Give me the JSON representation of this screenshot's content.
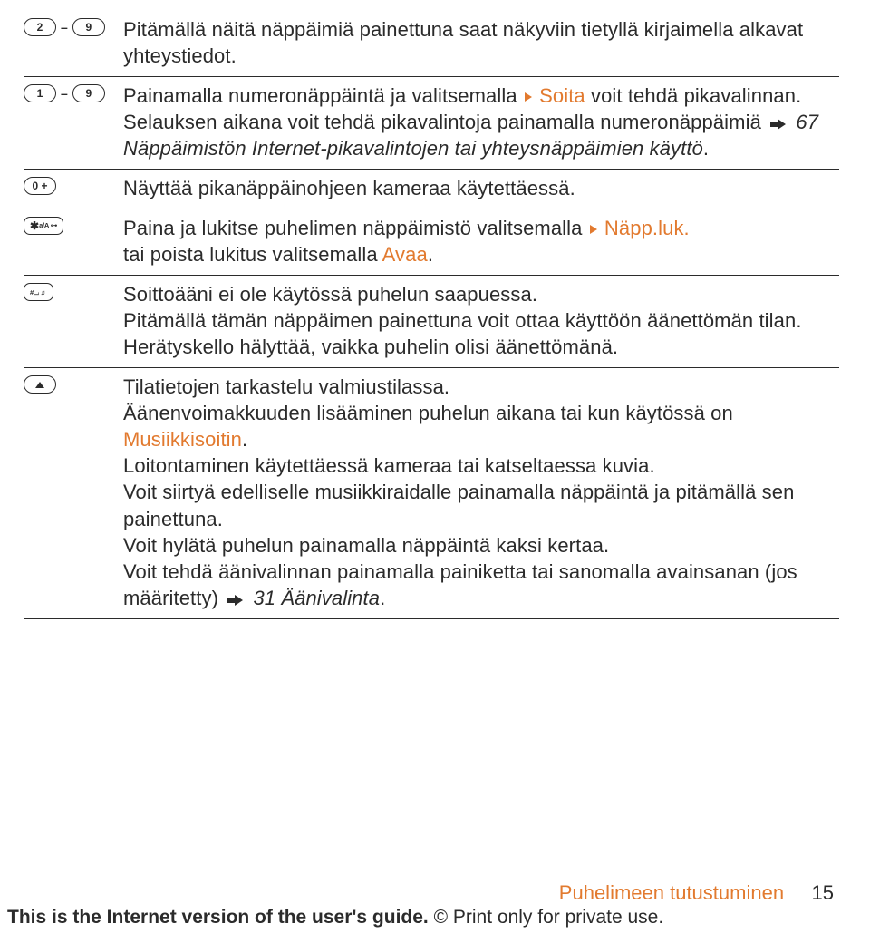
{
  "rows": [
    {
      "keys": [
        "2",
        "dash",
        "9"
      ],
      "parts": [
        {
          "text": "Pitämällä näitä näppäimiä painettuna saat näkyviin tietyllä kirjaimella alkavat yhteystiedot."
        }
      ]
    },
    {
      "keys": [
        "1",
        "dash",
        "9"
      ],
      "parts": [
        {
          "text": "Painamalla numeronäppäintä ja valitsemalla "
        },
        {
          "tri": true
        },
        {
          "text": " "
        },
        {
          "text": "Soita",
          "cls": "orange"
        },
        {
          "text": " voit tehdä pikavalinnan."
        },
        {
          "br": true
        },
        {
          "text": "Selauksen aikana voit tehdä pikavalintoja painamalla numeronäppäimiä "
        },
        {
          "arrow": true
        },
        {
          "text": " "
        },
        {
          "text": "67 Näppäimistön Internet-pikavalintojen tai yhteysnäppäimien käyttö",
          "cls": "italic"
        },
        {
          "text": "."
        }
      ]
    },
    {
      "keys": [
        "0+"
      ],
      "parts": [
        {
          "text": "Näyttää pikanäppäinohjeen kameraa käytettäessä."
        }
      ]
    },
    {
      "keys": [
        "star"
      ],
      "parts": [
        {
          "text": "Paina ja lukitse puhelimen näppäimistö valitsemalla "
        },
        {
          "tri": true
        },
        {
          "text": " "
        },
        {
          "text": "Näpp.luk.",
          "cls": "orange"
        },
        {
          "br": true
        },
        {
          "text": "tai poista lukitus valitsemalla "
        },
        {
          "text": "Avaa",
          "cls": "orange"
        },
        {
          "text": "."
        }
      ]
    },
    {
      "keys": [
        "hash"
      ],
      "parts": [
        {
          "text": "Soittoääni ei ole käytössä puhelun saapuessa."
        },
        {
          "br": true
        },
        {
          "text": "Pitämällä tämän näppäimen painettuna voit ottaa käyttöön äänettömän tilan. Herätyskello hälyttää, vaikka puhelin olisi äänettömänä."
        }
      ]
    },
    {
      "keys": [
        "up"
      ],
      "parts": [
        {
          "text": "Tilatietojen tarkastelu valmiustilassa."
        },
        {
          "br": true
        },
        {
          "text": "Äänenvoimakkuuden lisääminen puhelun aikana tai kun käytössä on "
        },
        {
          "text": "Musiikkisoitin",
          "cls": "orange"
        },
        {
          "text": "."
        },
        {
          "br": true
        },
        {
          "text": "Loitontaminen käytettäessä kameraa tai katseltaessa kuvia."
        },
        {
          "br": true
        },
        {
          "text": "Voit siirtyä edelliselle musiikkiraidalle painamalla näppäintä ja pitämällä sen painettuna."
        },
        {
          "br": true
        },
        {
          "text": "Voit hylätä puhelun painamalla näppäintä kaksi kertaa."
        },
        {
          "br": true
        },
        {
          "text": "Voit tehdä äänivalinnan painamalla painiketta tai sanomalla avainsanan (jos määritetty) "
        },
        {
          "arrow": true
        },
        {
          "text": " "
        },
        {
          "text": "31 Äänivalinta",
          "cls": "italic"
        },
        {
          "text": "."
        }
      ]
    }
  ],
  "key_labels": {
    "zero_plus": "0 +",
    "star_sub": "a/A ⊶",
    "hash_sub": "⌴ ♬"
  },
  "footer": {
    "section": "Puhelimeen tutustuminen",
    "page": "15",
    "line1": "This is the Internet version of the user's guide.",
    "line2": " © Print only for private use."
  },
  "colors": {
    "text": "#2b2b2b",
    "accent": "#e27a2f",
    "background": "#ffffff"
  }
}
